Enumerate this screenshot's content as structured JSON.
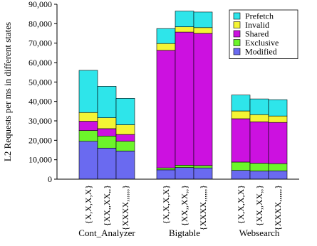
{
  "chart_data": {
    "type": "bar",
    "stacked": true,
    "title": "",
    "xlabel": "",
    "ylabel": "L2 Requests per ms in different states",
    "ylim": [
      0,
      90000
    ],
    "yticks": [
      "0",
      "10,000",
      "20,000",
      "30,000",
      "40,000",
      "50,000",
      "60,000",
      "70,000",
      "80,000",
      "90,000"
    ],
    "ytick_values": [
      0,
      10000,
      20000,
      30000,
      40000,
      50000,
      60000,
      70000,
      80000,
      90000
    ],
    "grid": false,
    "legend_position": "top-right",
    "groups": [
      "Cont_Analyzer",
      "Bigtable",
      "Websearch"
    ],
    "bar_labels": [
      "{X,X,X,X}",
      "{XX,,XX,,}",
      "{XXXX,,,,,,}"
    ],
    "series": [
      {
        "name": "Modified",
        "color": "#6a6af0",
        "values": [
          19500,
          16000,
          14500,
          4800,
          6000,
          5800,
          4500,
          4200,
          4300
        ]
      },
      {
        "name": "Exclusive",
        "color": "#6cf52a",
        "values": [
          5500,
          6200,
          5000,
          1000,
          1200,
          1200,
          4300,
          4000,
          3700
        ]
      },
      {
        "name": "Shared",
        "color": "#cc11e0",
        "values": [
          4800,
          3800,
          3500,
          60500,
          68500,
          68000,
          22300,
          21300,
          21200
        ]
      },
      {
        "name": "Invalid",
        "color": "#f4f434",
        "values": [
          4500,
          5600,
          5000,
          3500,
          2700,
          3000,
          4000,
          3700,
          3300
        ]
      },
      {
        "name": "Prefetch",
        "color": "#2ee5ea",
        "values": [
          21700,
          16200,
          13600,
          7700,
          8100,
          8000,
          8200,
          8100,
          8400
        ]
      }
    ]
  }
}
